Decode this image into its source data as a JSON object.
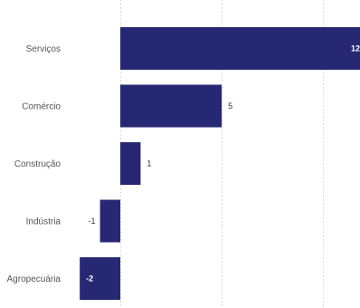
{
  "chart_data": {
    "type": "bar",
    "orientation": "horizontal",
    "categories": [
      "Serviços",
      "Comércio",
      "Construção",
      "Indústria",
      "Agropecuária"
    ],
    "values": [
      12,
      5,
      1,
      -1,
      -2
    ],
    "data_labels": [
      "12",
      "5",
      "1",
      "-1",
      "-2"
    ],
    "xlim": [
      -2,
      12
    ],
    "x_gridlines": [
      0,
      5,
      10
    ],
    "grid": true,
    "legend": "none",
    "bar_color": "#262873"
  }
}
